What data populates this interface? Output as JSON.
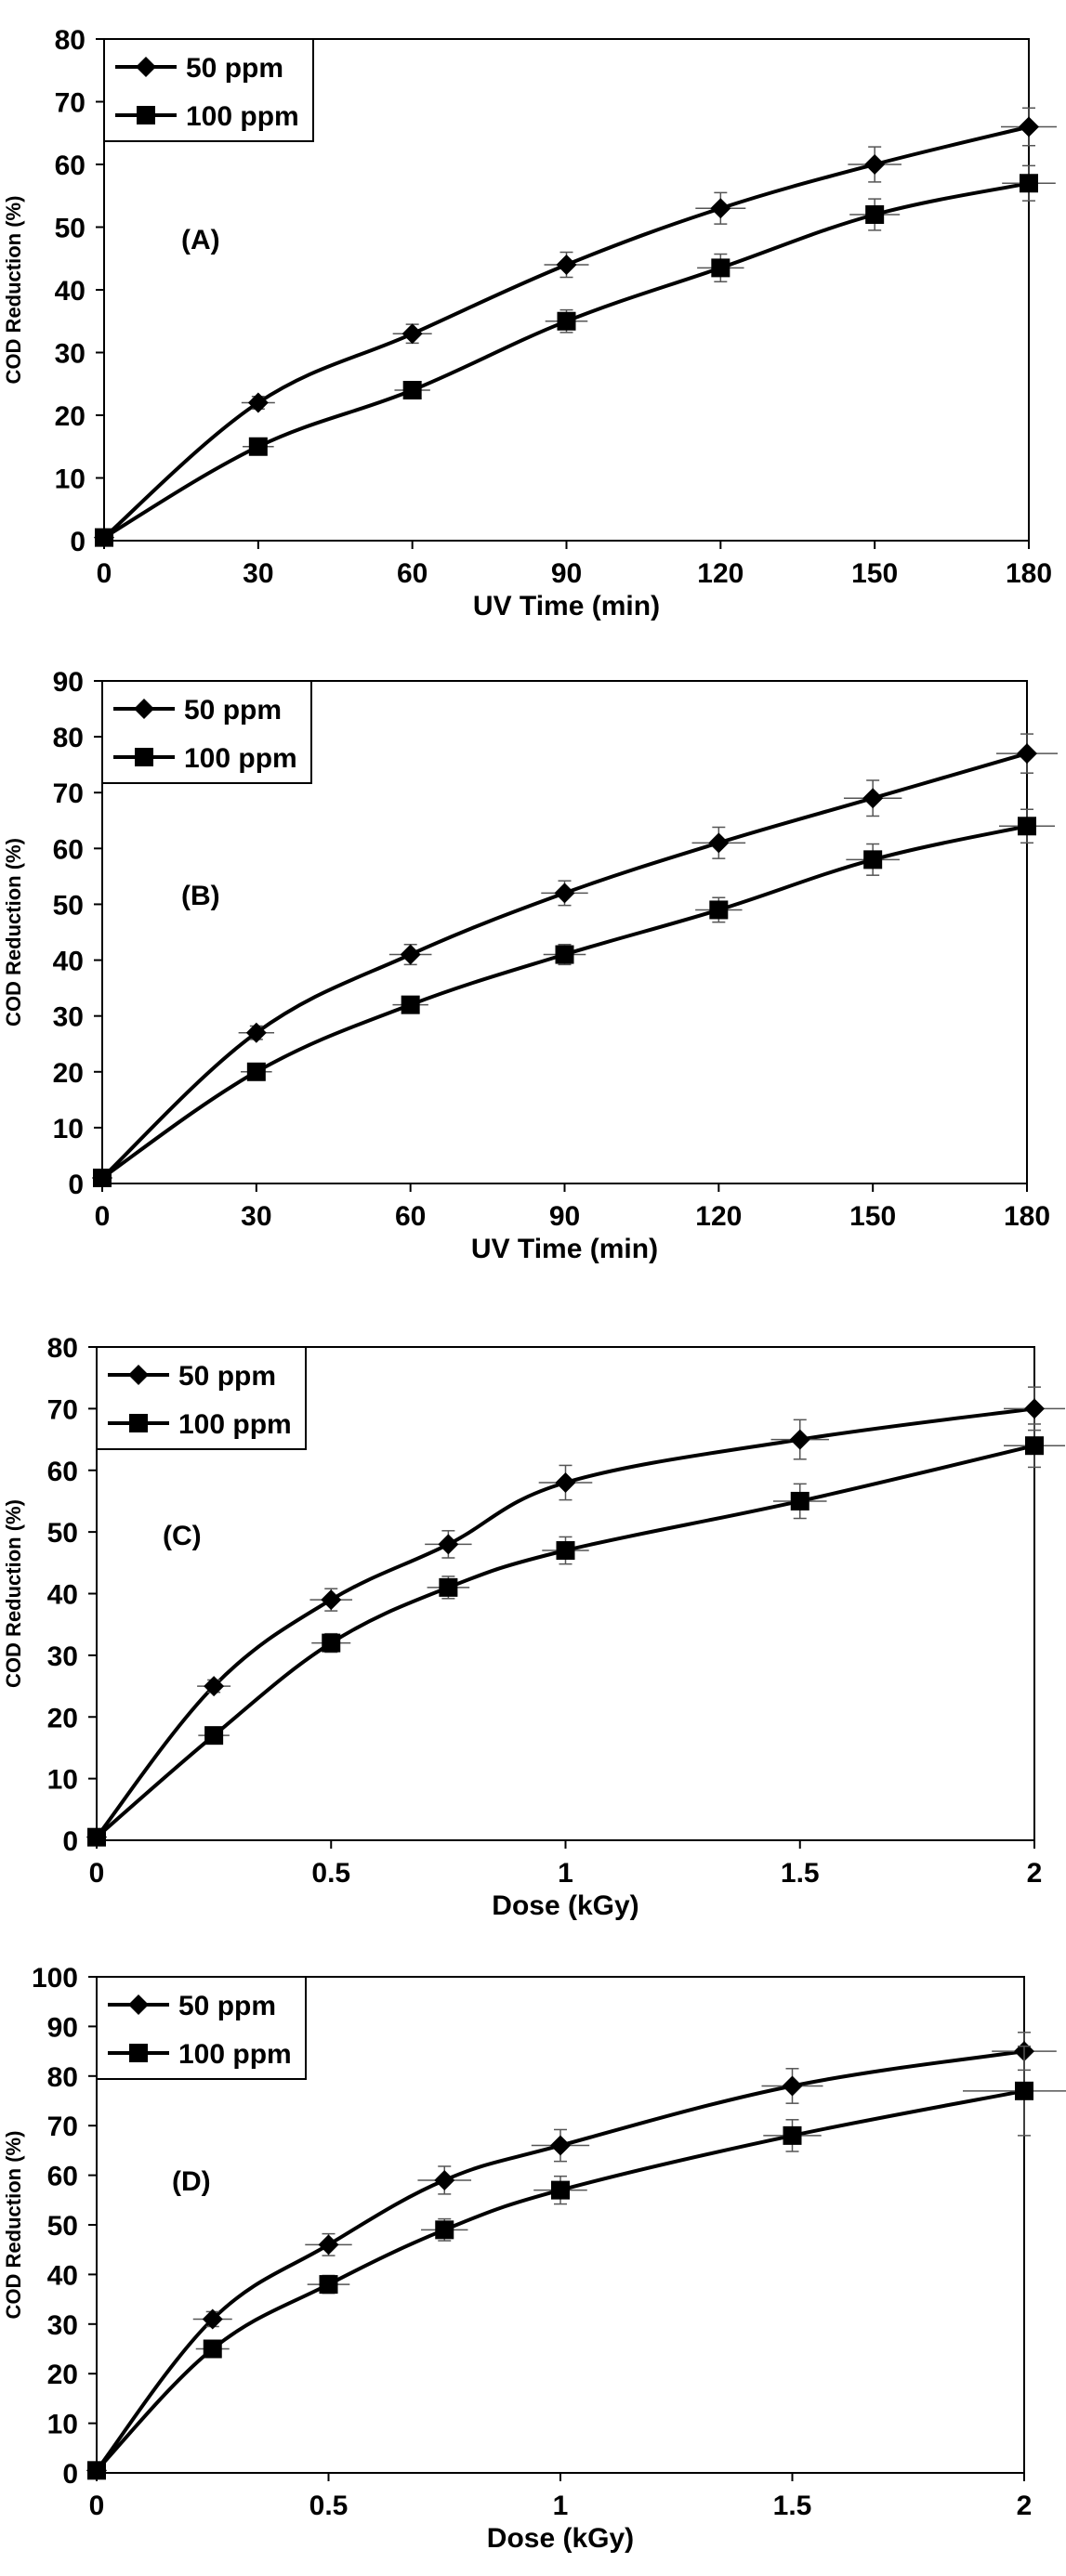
{
  "chart_data": [
    {
      "type": "line",
      "annotation": "(A)",
      "xlabel": "UV Time (min)",
      "ylabel": "COD Reduction (%)",
      "xlim": [
        0,
        180
      ],
      "ylim": [
        0,
        80
      ],
      "xticks": [
        0,
        30,
        60,
        90,
        120,
        150,
        180
      ],
      "yticks": [
        0,
        10,
        20,
        30,
        40,
        50,
        60,
        70,
        80
      ],
      "grid": false,
      "legend_position": "top-left",
      "x": [
        0,
        30,
        60,
        90,
        120,
        150,
        180
      ],
      "series": [
        {
          "name": "50 ppm",
          "marker": "diamond",
          "values": [
            0.5,
            22,
            33,
            44,
            53,
            60,
            66
          ],
          "errors": [
            0.5,
            1.0,
            1.5,
            2.0,
            2.5,
            2.8,
            3.0
          ]
        },
        {
          "name": "100 ppm",
          "marker": "square",
          "values": [
            0.5,
            15,
            24,
            35,
            43.5,
            52,
            57
          ],
          "errors": [
            0.5,
            0.8,
            1.2,
            1.8,
            2.2,
            2.5,
            2.8
          ]
        }
      ]
    },
    {
      "type": "line",
      "annotation": "(B)",
      "xlabel": "UV Time (min)",
      "ylabel": "COD Reduction (%)",
      "xlim": [
        0,
        180
      ],
      "ylim": [
        0,
        90
      ],
      "xticks": [
        0,
        30,
        60,
        90,
        120,
        150,
        180
      ],
      "yticks": [
        0,
        10,
        20,
        30,
        40,
        50,
        60,
        70,
        80,
        90
      ],
      "grid": false,
      "legend_position": "top-left",
      "x": [
        0,
        30,
        60,
        90,
        120,
        150,
        180
      ],
      "series": [
        {
          "name": "50 ppm",
          "marker": "diamond",
          "values": [
            1,
            27,
            41,
            52,
            61,
            69,
            77
          ],
          "errors": [
            0.5,
            1.2,
            1.8,
            2.2,
            2.8,
            3.2,
            3.5
          ]
        },
        {
          "name": "100 ppm",
          "marker": "square",
          "values": [
            1,
            20,
            32,
            41,
            49,
            58,
            64
          ],
          "errors": [
            0.5,
            0.8,
            1.2,
            1.8,
            2.2,
            2.8,
            3.0
          ]
        }
      ]
    },
    {
      "type": "line",
      "annotation": "(C)",
      "xlabel": "Dose (kGy)",
      "ylabel": "COD Reduction (%)",
      "xlim": [
        0,
        2
      ],
      "ylim": [
        0,
        80
      ],
      "xticks": [
        0,
        0.5,
        1,
        1.5,
        2
      ],
      "yticks": [
        0,
        10,
        20,
        30,
        40,
        50,
        60,
        70,
        80
      ],
      "grid": false,
      "legend_position": "top-left",
      "x": [
        0,
        0.25,
        0.5,
        0.75,
        1,
        1.5,
        2
      ],
      "series": [
        {
          "name": "50 ppm",
          "marker": "diamond",
          "values": [
            0.5,
            25,
            39,
            48,
            58,
            65,
            70
          ],
          "errors": [
            0.5,
            1.0,
            1.8,
            2.2,
            2.8,
            3.2,
            3.5
          ]
        },
        {
          "name": "100 ppm",
          "marker": "square",
          "values": [
            0.5,
            17,
            32,
            41,
            47,
            55,
            64
          ],
          "errors": [
            0.5,
            0.8,
            1.5,
            1.8,
            2.2,
            2.8,
            3.5
          ]
        }
      ]
    },
    {
      "type": "line",
      "annotation": "(D)",
      "xlabel": "Dose (kGy)",
      "ylabel": "COD Reduction (%)",
      "xlim": [
        0,
        2
      ],
      "ylim": [
        0,
        100
      ],
      "xticks": [
        0,
        0.5,
        1,
        1.5,
        2
      ],
      "yticks": [
        0,
        10,
        20,
        30,
        40,
        50,
        60,
        70,
        80,
        90,
        100
      ],
      "grid": false,
      "legend_position": "top-left",
      "x": [
        0,
        0.25,
        0.5,
        0.75,
        1,
        1.5,
        2
      ],
      "series": [
        {
          "name": "50 ppm",
          "marker": "diamond",
          "values": [
            0.5,
            31,
            46,
            59,
            66,
            78,
            85
          ],
          "errors": [
            0.5,
            1.5,
            2.2,
            2.8,
            3.2,
            3.5,
            3.8
          ]
        },
        {
          "name": "100 ppm",
          "marker": "square",
          "values": [
            0.5,
            25,
            38,
            49,
            57,
            68,
            77
          ],
          "errors": [
            0.5,
            1.0,
            1.8,
            2.2,
            2.8,
            3.2,
            9.0
          ]
        }
      ]
    }
  ]
}
